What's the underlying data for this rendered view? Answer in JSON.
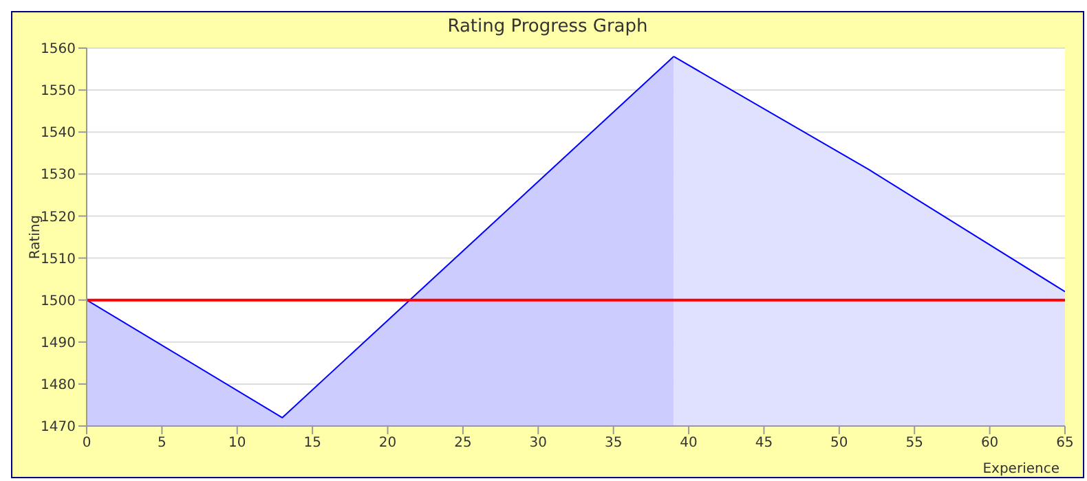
{
  "chart_data": {
    "type": "area",
    "title": "Rating Progress Graph",
    "xlabel": "Experience",
    "ylabel": "Rating",
    "series": [
      {
        "x": [
          0,
          13,
          39
        ],
        "values": [
          1500,
          1472,
          1558
        ],
        "color": "#ccccff"
      },
      {
        "x": [
          39,
          52,
          65
        ],
        "values": [
          1558,
          1531,
          1502
        ],
        "color": "#e0e0ff"
      }
    ],
    "xlim": [
      0,
      65
    ],
    "xticks": [
      0,
      5,
      10,
      15,
      20,
      25,
      30,
      35,
      40,
      45,
      50,
      55,
      60,
      65
    ],
    "ylim": [
      1470,
      1560
    ],
    "yticks": [
      1470,
      1480,
      1490,
      1500,
      1510,
      1520,
      1530,
      1540,
      1550,
      1560
    ],
    "grid": "y",
    "ref_lines": [
      {
        "axis": "y",
        "value": 1500,
        "color": "#ff0000"
      }
    ]
  }
}
